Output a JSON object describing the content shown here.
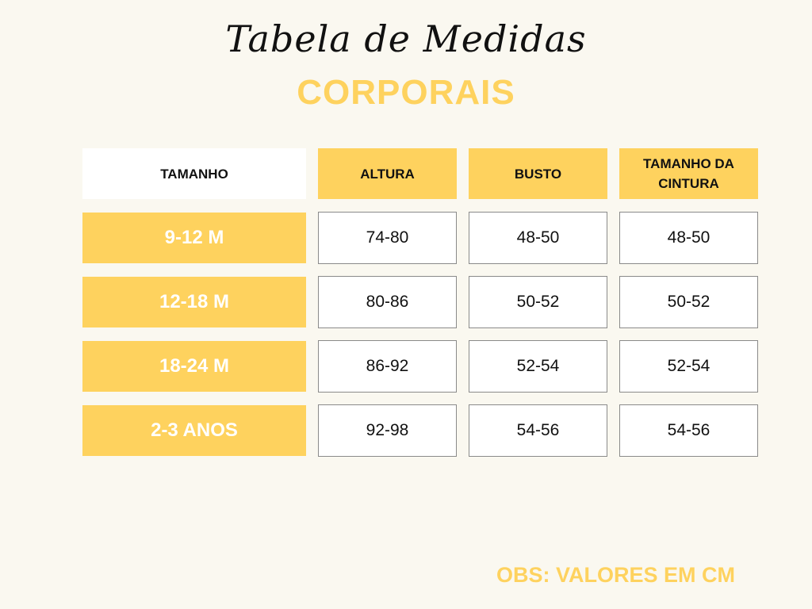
{
  "title": {
    "script": "Tabela de Medidas",
    "main": "CORPORAIS"
  },
  "table": {
    "headers": [
      "TAMANHO",
      "ALTURA",
      "BUSTO",
      "TAMANHO DA CINTURA"
    ],
    "rows": [
      {
        "size": "9-12 M",
        "altura": "74-80",
        "busto": "48-50",
        "cintura": "48-50"
      },
      {
        "size": "12-18 M",
        "altura": "80-86",
        "busto": "50-52",
        "cintura": "50-52"
      },
      {
        "size": "18-24 M",
        "altura": "86-92",
        "busto": "52-54",
        "cintura": "52-54"
      },
      {
        "size": "2-3 ANOS",
        "altura": "92-98",
        "busto": "54-56",
        "cintura": "54-56"
      }
    ]
  },
  "note": "OBS: VALORES EM CM",
  "colors": {
    "background": "#faf8f0",
    "accent": "#fed25e",
    "text": "#111111"
  }
}
